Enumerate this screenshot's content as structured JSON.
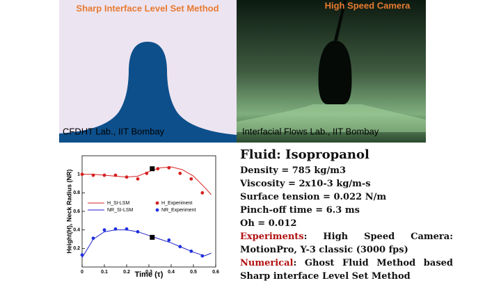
{
  "left_panel": {
    "title": "Sharp Interface Level Set Method",
    "caption": "CFDHT Lab., IIT Bombay"
  },
  "right_panel": {
    "title": "High Speed Camera",
    "caption": "Interfacial Flows Lab., IIT Bombay"
  },
  "chart_data": {
    "type": "line",
    "xlabel": "Time (τ)",
    "ylabel": "Height(H), Neck Radius (NR)",
    "xlim": [
      0,
      0.6
    ],
    "ylim": [
      0,
      1.2
    ],
    "xticks": [
      0,
      0.1,
      0.2,
      0.3,
      0.4,
      0.5,
      0.6
    ],
    "yticks": [
      0.2,
      0.4,
      0.6,
      0.8,
      1
    ],
    "series": [
      {
        "name": "H_SI-LSM",
        "kind": "line",
        "color": "#d62020",
        "x": [
          0,
          0.05,
          0.1,
          0.15,
          0.2,
          0.25,
          0.3,
          0.35,
          0.4,
          0.45,
          0.5,
          0.55,
          0.58
        ],
        "values": [
          1.0,
          1.0,
          0.99,
          0.98,
          0.97,
          0.98,
          1.03,
          1.07,
          1.08,
          1.05,
          0.98,
          0.86,
          0.78
        ]
      },
      {
        "name": "NR_SI-LSM",
        "kind": "line",
        "color": "#2020c8",
        "x": [
          0,
          0.05,
          0.1,
          0.15,
          0.2,
          0.25,
          0.3,
          0.35,
          0.4,
          0.45,
          0.5,
          0.55,
          0.58
        ],
        "values": [
          0.1,
          0.3,
          0.38,
          0.4,
          0.4,
          0.38,
          0.34,
          0.3,
          0.26,
          0.21,
          0.16,
          0.12,
          0.15
        ]
      },
      {
        "name": "H_Experiment",
        "kind": "scatter",
        "color": "#d62020",
        "x": [
          0,
          0.05,
          0.1,
          0.15,
          0.2,
          0.25,
          0.29,
          0.34,
          0.39,
          0.44,
          0.49,
          0.54
        ],
        "values": [
          1.0,
          0.99,
          0.99,
          0.99,
          0.97,
          0.95,
          1.01,
          1.06,
          1.07,
          1.01,
          0.95,
          0.8
        ]
      },
      {
        "name": "NR_Experiment",
        "kind": "scatter",
        "color": "#2030e0",
        "x": [
          0,
          0.05,
          0.1,
          0.15,
          0.2,
          0.25,
          0.39,
          0.44,
          0.49,
          0.54
        ],
        "values": [
          0.13,
          0.31,
          0.4,
          0.41,
          0.41,
          0.38,
          0.29,
          0.22,
          0.17,
          0.12
        ]
      }
    ],
    "markers": [
      {
        "x": 0.315,
        "y": 1.06
      },
      {
        "x": 0.315,
        "y": 0.32
      }
    ]
  },
  "info": {
    "heading": "Fluid: Isopropanol",
    "lines": [
      "Density = 785 kg/m3",
      "Viscosity = 2x10-3 kg/m-s",
      "Surface tension = 0.022 N/m",
      "Pinch-off time = 6.3 ms",
      "Oh = 0.012"
    ],
    "experiments": {
      "label": "Experiments",
      "text": ": High Speed Camera: MotionPro, Y-3 classic (3000 fps)"
    },
    "numerical": {
      "label": "Numerical",
      "text": ": Ghost Fluid Method based Sharp interface Level Set Method"
    }
  }
}
